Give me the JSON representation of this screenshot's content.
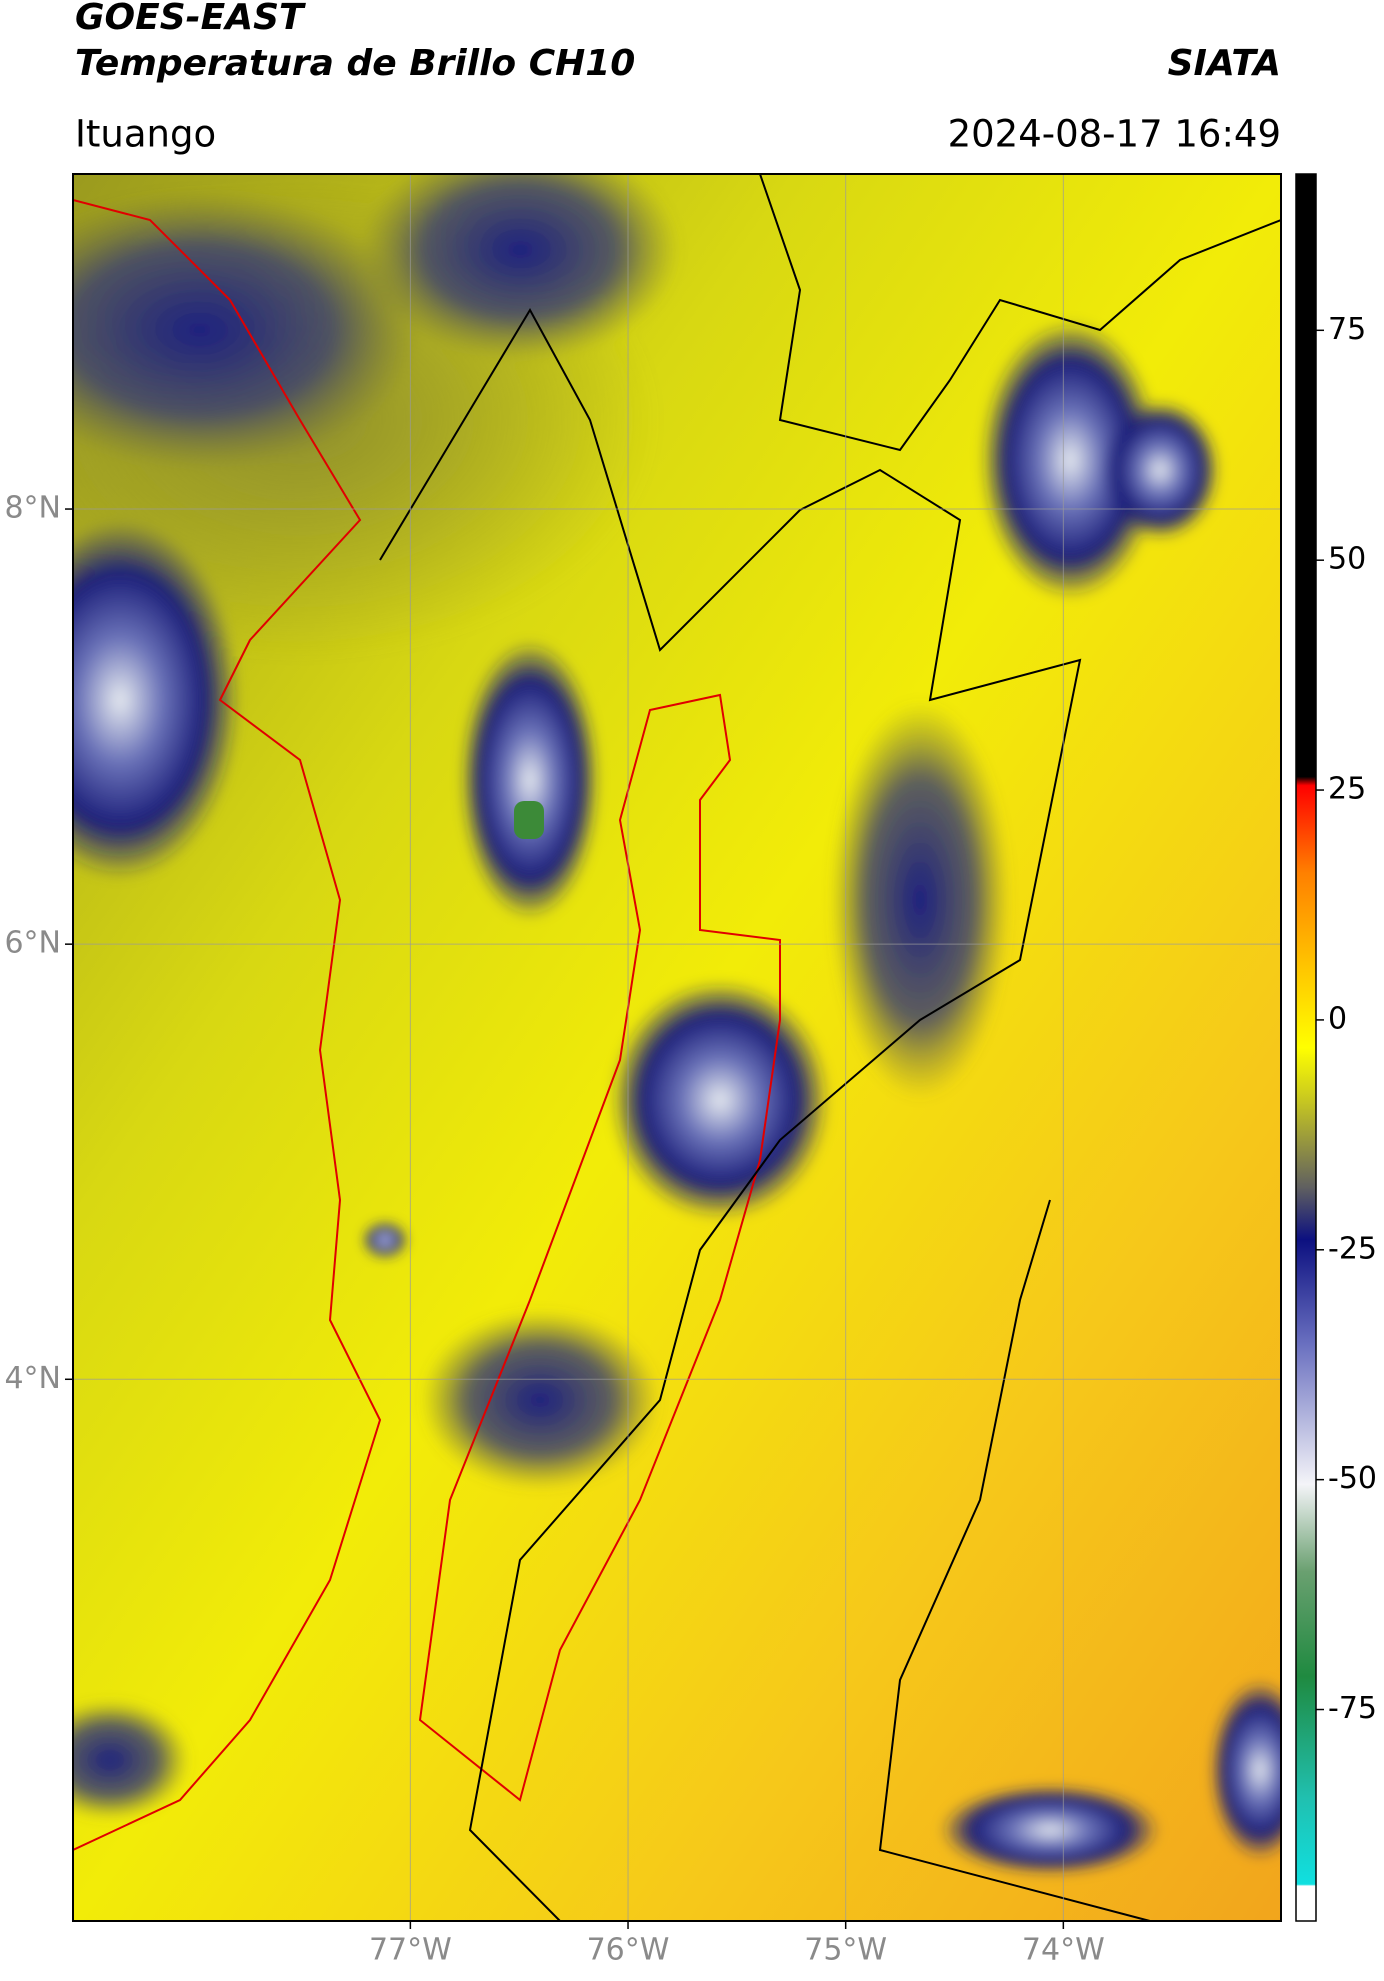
{
  "header": {
    "title": "GOES-EAST",
    "subtitle": "Temperatura de Brillo CH10",
    "brand": "SIATA",
    "location": "Ituango",
    "timestamp": "2024-08-17 16:49"
  },
  "map": {
    "latlim": [
      1.51,
      9.54
    ],
    "lonlim": [
      -78.55,
      -73.0
    ],
    "lat_ticks": [
      {
        "value": 8,
        "label": "8°N"
      },
      {
        "value": 6,
        "label": "6°N"
      },
      {
        "value": 4,
        "label": "4°N"
      }
    ],
    "lon_ticks": [
      {
        "value": -77,
        "label": "77°W"
      },
      {
        "value": -76,
        "label": "76°W"
      },
      {
        "value": -75,
        "label": "75°W"
      },
      {
        "value": -74,
        "label": "74°W"
      }
    ]
  },
  "colorbar": {
    "lim": [
      -98,
      92
    ],
    "ticks": [
      75,
      50,
      25,
      0,
      -25,
      -50,
      -75
    ]
  }
}
